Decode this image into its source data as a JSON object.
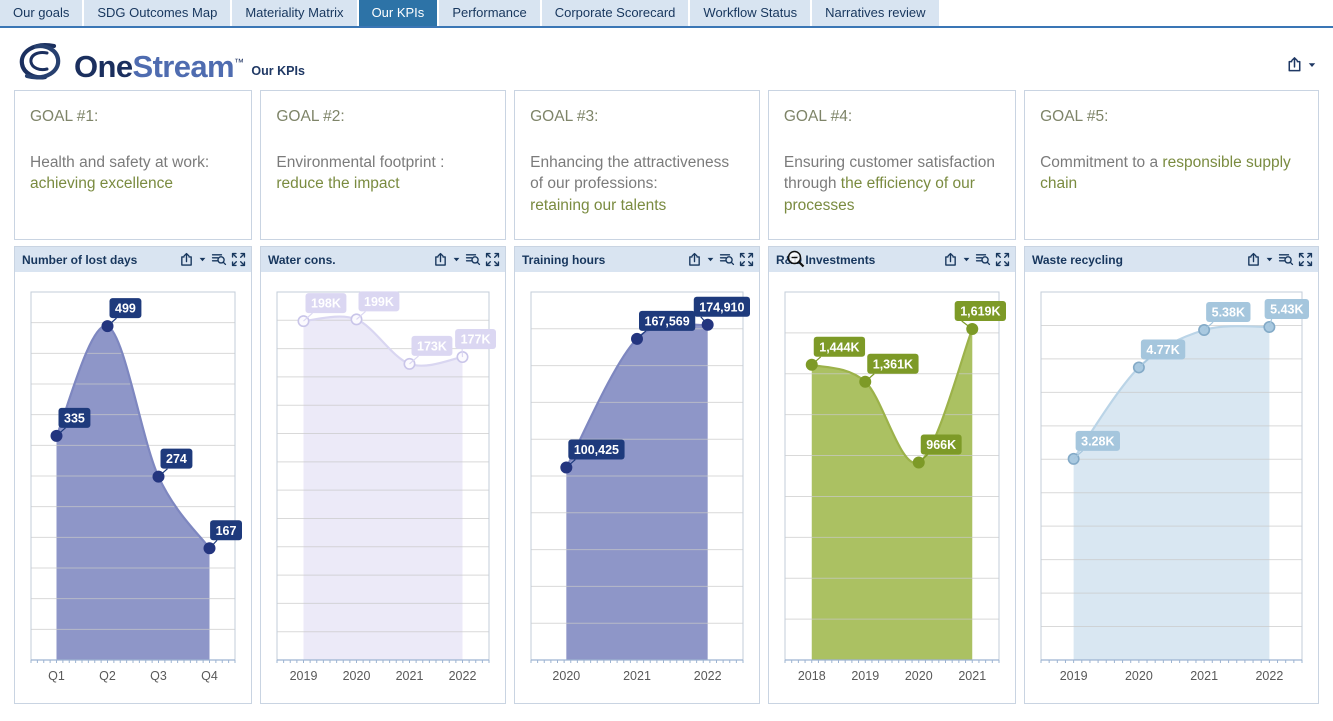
{
  "tabs": [
    {
      "label": "Our goals",
      "active": false
    },
    {
      "label": "SDG Outcomes Map",
      "active": false
    },
    {
      "label": "Materiality Matrix",
      "active": false
    },
    {
      "label": "Our KPIs",
      "active": true
    },
    {
      "label": "Performance",
      "active": false
    },
    {
      "label": "Corporate Scorecard",
      "active": false
    },
    {
      "label": "Workflow Status",
      "active": false
    },
    {
      "label": "Narratives review",
      "active": false
    }
  ],
  "brand": {
    "logo_one": "One",
    "logo_stream": "Stream",
    "logo_tm": "™",
    "page_subtitle": "Our KPIs"
  },
  "toolbar": {
    "icons": [
      "export-icon",
      "caret-down-icon"
    ]
  },
  "panel_icons": [
    "export-icon",
    "caret-down-icon",
    "zoom-data-icon",
    "fullscreen-icon"
  ],
  "cursor_icon": "zoom-out-magnifier-cursor",
  "goals": [
    {
      "heading": "GOAL #1:",
      "parts": [
        {
          "text": "Health and safety at work:",
          "accent": false,
          "break_after": true
        },
        {
          "text": "achieving excellence",
          "accent": true,
          "break_after": false
        }
      ]
    },
    {
      "heading": "GOAL #2:",
      "parts": [
        {
          "text": "Environmental footprint :",
          "accent": false,
          "break_after": true
        },
        {
          "text": "reduce the impact",
          "accent": true,
          "break_after": false
        }
      ]
    },
    {
      "heading": "GOAL #3:",
      "parts": [
        {
          "text": "Enhancing the attractiveness of our professions:",
          "accent": false,
          "break_after": true
        },
        {
          "text": "retaining our talents",
          "accent": true,
          "break_after": false
        }
      ]
    },
    {
      "heading": "GOAL #4:",
      "parts": [
        {
          "text": "Ensuring customer satisfaction through",
          "accent": false,
          "break_after": false
        },
        {
          "text": "the efficiency of our processes",
          "accent": true,
          "break_after": false
        }
      ]
    },
    {
      "heading": "GOAL #5:",
      "parts": [
        {
          "text": "Commitment to a",
          "accent": false,
          "break_after": false
        },
        {
          "text": "responsible supply chain",
          "accent": true,
          "break_after": false
        }
      ]
    }
  ],
  "colors": {
    "active_tab": "#2d73a7",
    "tab_bg": "#d8e4f1",
    "navy_text": "#17365d",
    "panel_header_bg": "#d9e4f1",
    "goal_accent": "#7a8b40",
    "goal_gray": "#7b7b7b",
    "series_navy": "#8e96c8",
    "series_lavender": "#ecebf8",
    "series_olive": "#abc162",
    "series_lightblue": "#d9e7f2"
  },
  "chart_data": [
    {
      "type": "area",
      "title": "Number of lost days",
      "categories": [
        "Q1",
        "Q2",
        "Q3",
        "Q4"
      ],
      "values": [
        335,
        499,
        274,
        167
      ],
      "point_labels": [
        "335",
        "499",
        "274",
        "167"
      ],
      "ylim": [
        0,
        550
      ],
      "grid_intervals": 12,
      "theme": {
        "area": "#8e96c8",
        "line": "#7e87c0",
        "dot_fill": "#24357f",
        "dot_stroke": "#24357f",
        "label_bg": "#1e3a7c",
        "label_text": "#ffffff",
        "open_dot": false
      }
    },
    {
      "type": "area",
      "title": "Water cons.",
      "categories": [
        "2019",
        "2020",
        "2021",
        "2022"
      ],
      "values": [
        198000,
        199000,
        173000,
        177000
      ],
      "point_labels": [
        "198K",
        "199K",
        "173K",
        "177K"
      ],
      "ylim": [
        0,
        215000
      ],
      "grid_intervals": 13,
      "theme": {
        "area": "#eceaf8",
        "line": "#d9d6f1",
        "dot_fill": "#fbfafe",
        "dot_stroke": "#c9c5e9",
        "label_bg": "#dbd7f2",
        "label_text": "#ffffff",
        "open_dot": true
      }
    },
    {
      "type": "area",
      "title": "Training hours",
      "categories": [
        "2020",
        "2021",
        "2022"
      ],
      "values": [
        100425,
        167569,
        174910
      ],
      "point_labels": [
        "100,425",
        "167,569",
        "174,910"
      ],
      "ylim": [
        0,
        192000
      ],
      "grid_intervals": 10,
      "theme": {
        "area": "#8e96c8",
        "line": "#7e87c0",
        "dot_fill": "#24357f",
        "dot_stroke": "#24357f",
        "label_bg": "#1e3a7c",
        "label_text": "#ffffff",
        "open_dot": false
      }
    },
    {
      "type": "area",
      "title": "R&D Investments",
      "categories": [
        "2018",
        "2019",
        "2020",
        "2021"
      ],
      "values": [
        1444,
        1361,
        966,
        1619
      ],
      "point_labels": [
        "1,444K",
        "1,361K",
        "966K",
        "1,619K"
      ],
      "ylim": [
        0,
        1800
      ],
      "grid_intervals": 9,
      "theme": {
        "area": "#abc162",
        "line": "#9cb24a",
        "dot_fill": "#7d9a27",
        "dot_stroke": "#7d9a27",
        "label_bg": "#7d9a27",
        "label_text": "#ffffff",
        "open_dot": false
      }
    },
    {
      "type": "area",
      "title": "Waste recycling",
      "categories": [
        "2019",
        "2020",
        "2021",
        "2022"
      ],
      "values": [
        3280,
        4770,
        5380,
        5430
      ],
      "point_labels": [
        "3.28K",
        "4.77K",
        "5.38K",
        "5.43K"
      ],
      "ylim": [
        0,
        6000
      ],
      "grid_intervals": 11,
      "theme": {
        "area": "#d9e7f2",
        "line": "#bad4e7",
        "dot_fill": "#a9c9e0",
        "dot_stroke": "#83aac7",
        "label_bg": "#a5c6dd",
        "label_text": "#ffffff",
        "open_dot": false
      }
    }
  ]
}
